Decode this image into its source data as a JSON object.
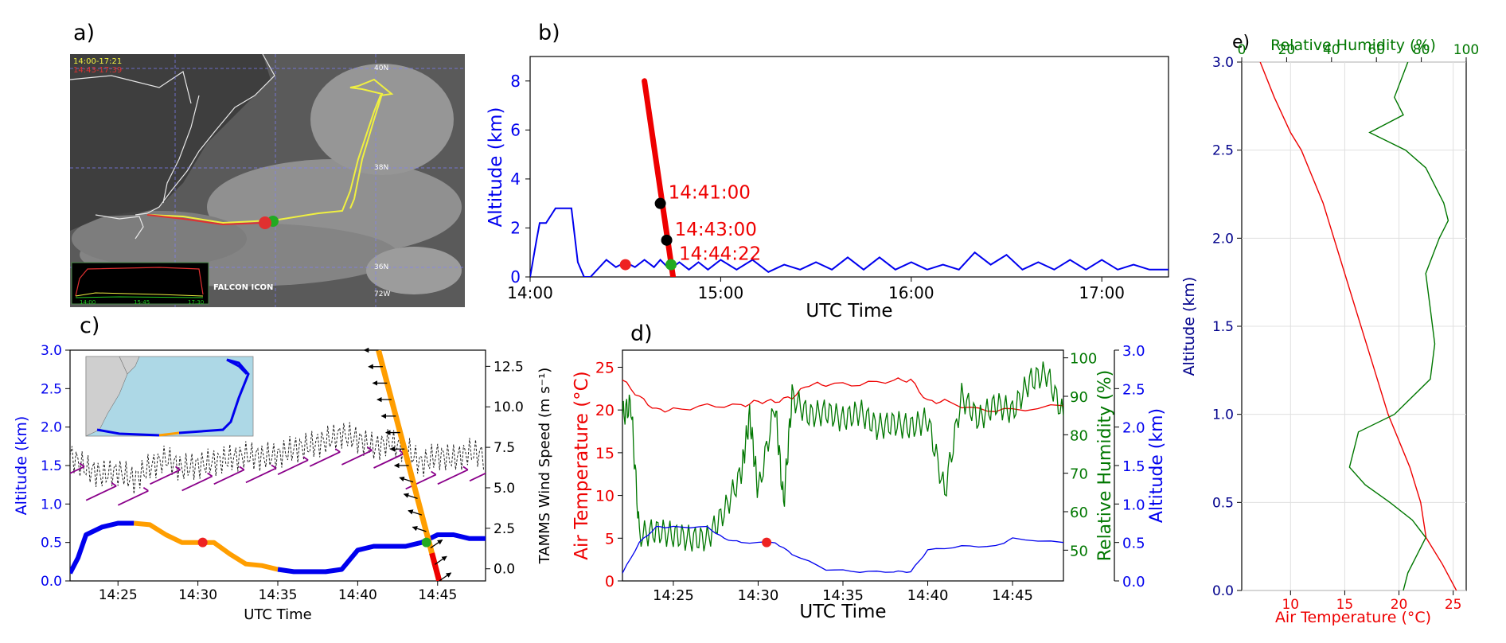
{
  "panels": {
    "a": {
      "label": "a)",
      "legend": [
        "14:00-17:21",
        "14:43-17:39"
      ],
      "lat_labels": [
        "40N",
        "38N",
        "36N"
      ],
      "lon_label": "72W",
      "footer_text": "FALCON ICON",
      "inset_ticks": [
        "14:00",
        "15:45",
        "17:30"
      ],
      "colors": {
        "yellow_track": "#f0f040",
        "red_track": "#e03030",
        "green_marker": "#22aa22"
      }
    },
    "b": {
      "label": "b)",
      "chart_data": {
        "type": "line",
        "xlabel": "UTC Time",
        "ylabel": "Altitude (km)",
        "xlim": [
          "14:00",
          "17:21"
        ],
        "ylim": [
          0,
          9
        ],
        "xticks": [
          "14:00",
          "15:00",
          "16:00",
          "17:00"
        ],
        "yticks": [
          0,
          2,
          4,
          6,
          8
        ],
        "grid": false,
        "series": [
          {
            "color": "#0000ee",
            "x": [
              "14:00",
              "14:02",
              "14:03",
              "14:05",
              "14:07",
              "14:08",
              "14:13",
              "14:15",
              "14:17",
              "14:19",
              "14:24",
              "14:27",
              "14:30",
              "14:33",
              "14:36",
              "14:39",
              "14:41",
              "14:44",
              "14:47",
              "14:50",
              "14:53",
              "14:56",
              "15:00",
              "15:05",
              "15:10",
              "15:15",
              "15:20",
              "15:25",
              "15:30",
              "15:35",
              "15:40",
              "15:45",
              "15:50",
              "15:55",
              "16:00",
              "16:05",
              "16:10",
              "16:15",
              "16:20",
              "16:25",
              "16:30",
              "16:35",
              "16:40",
              "16:45",
              "16:50",
              "16:55",
              "17:00",
              "17:05",
              "17:10",
              "17:15",
              "17:21"
            ],
            "y": [
              0,
              1.5,
              2.2,
              2.2,
              2.6,
              2.8,
              2.8,
              0.6,
              0,
              0,
              0.7,
              0.4,
              0.6,
              0.4,
              0.7,
              0.4,
              0.7,
              0.3,
              0.6,
              0.3,
              0.6,
              0.3,
              0.7,
              0.3,
              0.7,
              0.2,
              0.5,
              0.3,
              0.6,
              0.3,
              0.8,
              0.3,
              0.8,
              0.3,
              0.6,
              0.3,
              0.5,
              0.3,
              1.0,
              0.5,
              0.9,
              0.3,
              0.6,
              0.3,
              0.7,
              0.3,
              0.7,
              0.3,
              0.5,
              0.3,
              0.3
            ]
          },
          {
            "color": "#ee0000",
            "x": [
              "14:36",
              "14:45"
            ],
            "y": [
              8.0,
              0.0
            ]
          }
        ],
        "markers": [
          {
            "x": "14:30",
            "y": 0.5,
            "color": "#ee2222"
          },
          {
            "x": "14:41",
            "y": 3.0,
            "color": "#000000",
            "text": "14:41:00"
          },
          {
            "x": "14:43",
            "y": 1.5,
            "color": "#000000",
            "text": "14:43:00"
          },
          {
            "x": "14:44:22",
            "y": 0.5,
            "color": "#22aa22",
            "text": "14:44:22"
          }
        ]
      }
    },
    "c": {
      "label": "c)",
      "chart_data": {
        "type": "line",
        "xlabel": "UTC Time",
        "ylabel": "Altitude (km)",
        "ylabel_right": "TAMMS Wind Speed (m s⁻¹)",
        "xlim": [
          "14:22",
          "14:48"
        ],
        "ylim": [
          0,
          3
        ],
        "ylim_right": [
          -0.75,
          13.5
        ],
        "xticks": [
          "14:25",
          "14:30",
          "14:35",
          "14:40",
          "14:45"
        ],
        "yticks": [
          "0.0",
          "0.5",
          "1.0",
          "1.5",
          "2.0",
          "2.5",
          "3.0"
        ],
        "yticks_right": [
          "0.0",
          "2.5",
          "5.0",
          "7.5",
          "10.0",
          "12.5"
        ],
        "altitude": {
          "x": [
            "14:22",
            "14:22.5",
            "14:23",
            "14:24",
            "14:25",
            "14:26",
            "14:27",
            "14:28",
            "14:29",
            "14:30",
            "14:31",
            "14:32",
            "14:33",
            "14:34",
            "14:35",
            "14:36",
            "14:37",
            "14:38",
            "14:39",
            "14:40",
            "14:41",
            "14:42",
            "14:43",
            "14:44",
            "14:45",
            "14:46",
            "14:47",
            "14:48"
          ],
          "y": [
            0.1,
            0.3,
            0.6,
            0.7,
            0.75,
            0.75,
            0.73,
            0.6,
            0.5,
            0.5,
            0.5,
            0.35,
            0.22,
            0.2,
            0.15,
            0.12,
            0.12,
            0.12,
            0.15,
            0.4,
            0.45,
            0.45,
            0.45,
            0.5,
            0.6,
            0.6,
            0.55,
            0.55
          ],
          "segment_colors": [
            "#0000ee",
            "#ff9e00",
            "#0000ee"
          ]
        },
        "wind_speed": {
          "x": [
            "14:22",
            "14:23",
            "14:24",
            "14:25",
            "14:26",
            "14:27",
            "14:28",
            "14:29",
            "14:30",
            "14:31",
            "14:32",
            "14:33",
            "14:34",
            "14:35",
            "14:36",
            "14:37",
            "14:38",
            "14:39",
            "14:40",
            "14:41",
            "14:42",
            "14:43",
            "14:44",
            "14:45",
            "14:46",
            "14:47",
            "14:48"
          ],
          "y": [
            7.0,
            6.2,
            5.8,
            6.0,
            5.5,
            6.3,
            6.8,
            6.2,
            6.4,
            6.6,
            6.8,
            7.0,
            6.9,
            7.0,
            7.4,
            7.6,
            7.9,
            8.3,
            8.0,
            7.5,
            7.8,
            7.4,
            6.5,
            7.0,
            6.8,
            7.2,
            7.0
          ]
        },
        "descent": {
          "x": [
            "14:41.3",
            "14:45.1"
          ],
          "y": [
            3.0,
            0.0
          ],
          "color": "#ff9e00",
          "end_color": "#ee0000"
        },
        "markers": [
          {
            "x": "14:30.3",
            "y": 0.5,
            "color": "#ee2222"
          },
          {
            "x": "14:44.3",
            "y": 0.5,
            "color": "#22aa22"
          }
        ],
        "colors": {
          "wind_barbs": "#8a008a",
          "vectors": "#000000",
          "inset_land": "#cfcfcf",
          "inset_sea": "#add8e6"
        }
      }
    },
    "d": {
      "label": "d)",
      "chart_data": {
        "type": "line",
        "xlabel": "UTC Time",
        "ylabel_left": "Air Temperature (°C)",
        "ylabel_mid": "Relative Humidity (%)",
        "ylabel_right": "Altitude (km)",
        "xlim": [
          "14:22",
          "14:48"
        ],
        "ylim_left": [
          0,
          27
        ],
        "ylim_mid": [
          42,
          102
        ],
        "ylim_right": [
          0,
          3
        ],
        "xticks": [
          "14:25",
          "14:30",
          "14:35",
          "14:40",
          "14:45"
        ],
        "yticks_left": [
          0,
          5,
          10,
          15,
          20,
          25
        ],
        "yticks_mid": [
          50,
          60,
          70,
          80,
          90,
          100
        ],
        "yticks_right": [
          "0.0",
          "0.5",
          "1.0",
          "1.5",
          "2.0",
          "2.5",
          "3.0"
        ],
        "series": [
          {
            "color": "#ee0000",
            "x": [
              "14:22",
              "14:23",
              "14:24",
              "14:25",
              "14:27",
              "14:29",
              "14:30",
              "14:31",
              "14:32",
              "14:33",
              "14:34",
              "14:36",
              "14:38",
              "14:39",
              "14:40",
              "14:41",
              "14:43",
              "14:45",
              "14:48"
            ],
            "y": [
              23.5,
              21.5,
              20.0,
              20.0,
              20.5,
              20.5,
              21.0,
              21.0,
              21.5,
              23.0,
              23.0,
              23.0,
              23.5,
              23.5,
              21.0,
              21.0,
              20.0,
              20.0,
              20.5
            ]
          },
          {
            "color": "#007700",
            "x": [
              "14:22",
              "14:22.5",
              "14:23",
              "14:24",
              "14:25",
              "14:26",
              "14:27",
              "14:28",
              "14:29",
              "14:29.5",
              "14:30",
              "14:31",
              "14:31.5",
              "14:32",
              "14:33",
              "14:34",
              "14:35",
              "14:36",
              "14:37",
              "14:38",
              "14:39",
              "14:40",
              "14:41",
              "14:42",
              "14:43",
              "14:44",
              "14:45",
              "14:46",
              "14:47",
              "14:48"
            ],
            "y": [
              85,
              88,
              54,
              55,
              54,
              53,
              53,
              60,
              70,
              85,
              65,
              88,
              62,
              90,
              85,
              86,
              84,
              86,
              82,
              83,
              82,
              84,
              65,
              90,
              84,
              88,
              86,
              94,
              96,
              85
            ]
          },
          {
            "color": "#0000ee",
            "x": [
              "14:22",
              "14:23",
              "14:24",
              "14:25",
              "14:27",
              "14:28",
              "14:29",
              "14:31",
              "14:32",
              "14:34",
              "14:36",
              "14:38",
              "14:39",
              "14:40",
              "14:42",
              "14:44",
              "14:45",
              "14:48"
            ],
            "y": [
              0.1,
              0.5,
              0.7,
              0.7,
              0.7,
              0.55,
              0.5,
              0.5,
              0.35,
              0.15,
              0.12,
              0.12,
              0.12,
              0.4,
              0.45,
              0.45,
              0.55,
              0.5
            ]
          }
        ],
        "markers": [
          {
            "x": "14:30.5",
            "y_alt": 0.5,
            "color": "#ee2222"
          }
        ]
      }
    },
    "e": {
      "label": "e)",
      "chart_data": {
        "type": "line",
        "xlabel_bottom": "Air Temperature (°C)",
        "xlabel_top": "Relative Humidity (%)",
        "ylabel": "Altitude (km)",
        "xlim_bottom": [
          5.5,
          26.2
        ],
        "xlim_top": [
          0,
          100
        ],
        "ylim": [
          0,
          3
        ],
        "xticks_bottom": [
          10,
          15,
          20,
          25
        ],
        "xticks_top": [
          0,
          20,
          40,
          60,
          80,
          100
        ],
        "yticks": [
          "0.0",
          "0.5",
          "1.0",
          "1.5",
          "2.0",
          "2.5",
          "3.0"
        ],
        "grid": true,
        "series": [
          {
            "color": "#ee0000",
            "axis": "bottom",
            "y": [
              0.0,
              0.15,
              0.3,
              0.5,
              0.7,
              1.0,
              1.3,
              1.6,
              1.9,
              2.2,
              2.5,
              2.6,
              2.8,
              3.0
            ],
            "x": [
              25.3,
              24.0,
              22.5,
              22.0,
              21.0,
              19.0,
              17.5,
              16.0,
              14.5,
              13.0,
              11.0,
              10.0,
              8.5,
              7.2
            ]
          },
          {
            "color": "#007700",
            "axis": "top",
            "y": [
              0.0,
              0.1,
              0.2,
              0.3,
              0.4,
              0.5,
              0.6,
              0.7,
              0.8,
              0.9,
              1.0,
              1.2,
              1.4,
              1.6,
              1.8,
              2.0,
              2.1,
              2.2,
              2.4,
              2.5,
              2.6,
              2.7,
              2.8,
              3.0
            ],
            "x": [
              72,
              74,
              78,
              82,
              76,
              66,
              55,
              48,
              50,
              52,
              68,
              84,
              86,
              84,
              82,
              88,
              92,
              90,
              82,
              73,
              57,
              72,
              68,
              74
            ]
          }
        ]
      }
    }
  }
}
